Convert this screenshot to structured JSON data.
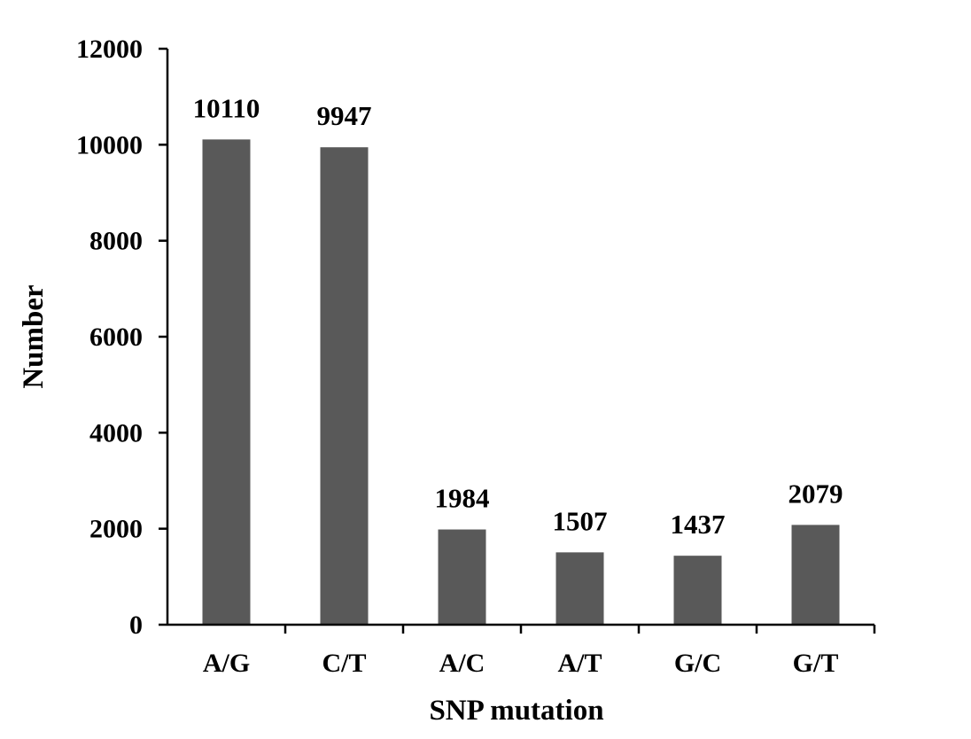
{
  "chart_data": {
    "type": "bar",
    "categories": [
      "A/G",
      "C/T",
      "A/C",
      "A/T",
      "G/C",
      "G/T"
    ],
    "values": [
      10110,
      9947,
      1984,
      1507,
      1437,
      2079
    ],
    "data_labels": [
      "10110",
      "9947",
      "1984",
      "1507",
      "1437",
      "2079"
    ],
    "xlabel": "SNP mutation",
    "ylabel": "Number",
    "ylim": [
      0,
      12000
    ],
    "yticks": [
      0,
      2000,
      4000,
      6000,
      8000,
      10000,
      12000
    ],
    "bar_color": "#595959",
    "grid": false,
    "legend": false
  }
}
